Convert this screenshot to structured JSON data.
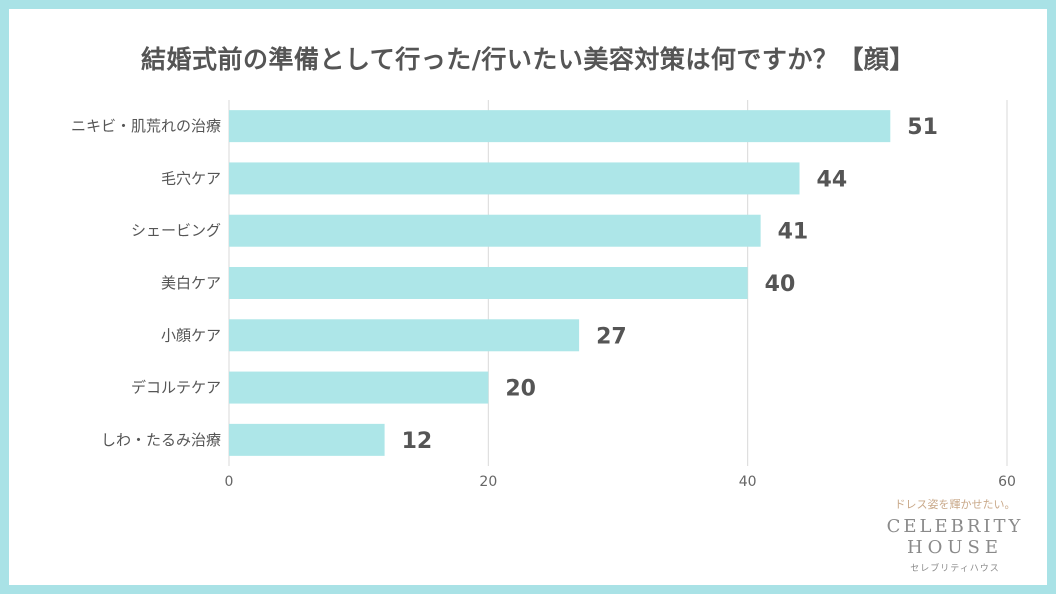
{
  "chart_data": {
    "type": "bar",
    "orientation": "horizontal",
    "title": "結婚式前の準備として行った/行いたい美容対策は何ですか？【顔】",
    "categories": [
      "ニキビ・肌荒れの治療",
      "毛穴ケア",
      "シェービング",
      "美白ケア",
      "小顔ケア",
      "デコルテケア",
      "しわ・たるみ治療"
    ],
    "values": [
      51,
      44,
      41,
      40,
      27,
      20,
      12
    ],
    "xlim": [
      0,
      60
    ],
    "xticks": [
      0,
      20,
      40,
      60
    ],
    "grid": true,
    "bar_color": "#ade6e8",
    "label_color": "#555555"
  },
  "brand": {
    "tagline": "ドレス姿を輝かせたい。",
    "name_line1": "CELEBRITY",
    "name_line2": "HOUSE",
    "kana": "セレブリティハウス"
  }
}
